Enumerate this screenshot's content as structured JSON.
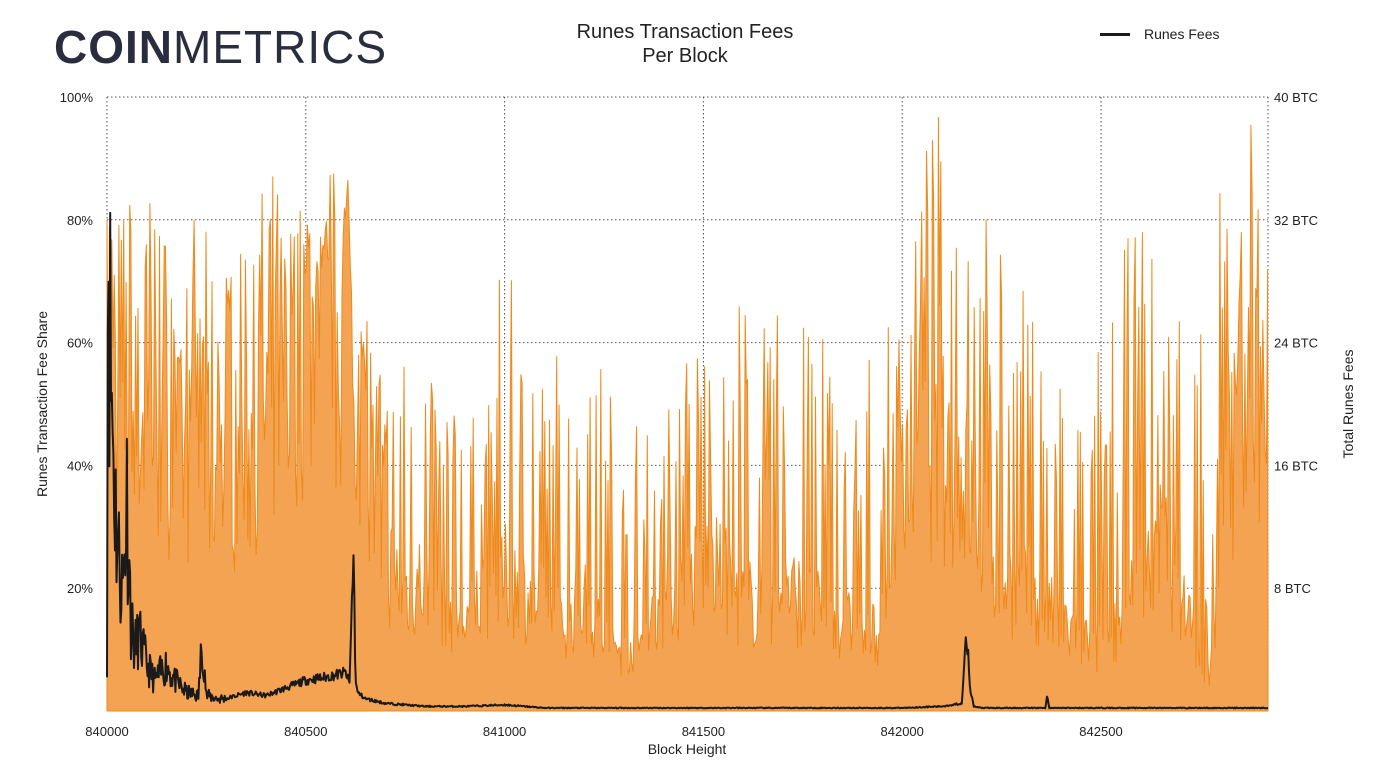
{
  "logo": {
    "part1": "COIN",
    "part2": "METRICS"
  },
  "chart_data": {
    "type": "area",
    "title_line1": "Runes Transaction Fees",
    "title_line2": "Per Block",
    "xlabel": "Block Height",
    "ylabel_left": "Runes Transaction Fee Share",
    "ylabel_right": "Total Runes Fees",
    "xlim": [
      840000,
      842920
    ],
    "x_ticks": [
      840000,
      840500,
      841000,
      841500,
      842000,
      842500
    ],
    "ylim_left": [
      0,
      100
    ],
    "y_ticks_left": [
      {
        "value": 20,
        "label": "20%"
      },
      {
        "value": 40,
        "label": "40%"
      },
      {
        "value": 60,
        "label": "60%"
      },
      {
        "value": 80,
        "label": "80%"
      },
      {
        "value": 100,
        "label": "100%"
      }
    ],
    "ylim_right": [
      0,
      40
    ],
    "y_ticks_right": [
      {
        "value": 8,
        "label": "8 BTC"
      },
      {
        "value": 16,
        "label": "16 BTC"
      },
      {
        "value": 24,
        "label": "24 BTC"
      },
      {
        "value": 32,
        "label": "32 BTC"
      },
      {
        "value": 40,
        "label": "40 BTC"
      }
    ],
    "grid": true,
    "legend_position": "top-right",
    "series": [
      {
        "name": "",
        "axis": "left",
        "type": "area",
        "color": "#f0932b",
        "x": [
          840000,
          840010,
          840030,
          840060,
          840100,
          840150,
          840200,
          840250,
          840300,
          840350,
          840400,
          840450,
          840500,
          840550,
          840600,
          840630,
          840660,
          840700,
          840750,
          840800,
          840850,
          840900,
          840950,
          841000,
          841050,
          841100,
          841150,
          841200,
          841250,
          841300,
          841350,
          841400,
          841450,
          841500,
          841550,
          841600,
          841650,
          841700,
          841750,
          841800,
          841850,
          841900,
          841950,
          842000,
          842050,
          842100,
          842150,
          842200,
          842250,
          842300,
          842350,
          842400,
          842450,
          842500,
          842550,
          842600,
          842650,
          842700,
          842750,
          842770,
          842800,
          842850,
          842900,
          842920
        ],
        "baseline": [
          60,
          55,
          52,
          50,
          48,
          45,
          42,
          40,
          40,
          42,
          50,
          55,
          62,
          65,
          62,
          55,
          35,
          25,
          20,
          22,
          18,
          15,
          20,
          22,
          20,
          17,
          15,
          18,
          12,
          10,
          12,
          18,
          20,
          24,
          22,
          18,
          18,
          20,
          18,
          16,
          15,
          12,
          14,
          35,
          45,
          42,
          40,
          30,
          22,
          20,
          18,
          14,
          12,
          10,
          15,
          22,
          28,
          20,
          10,
          2,
          30,
          50,
          52,
          50
        ],
        "peaks": [
          97,
          92,
          90,
          88,
          92,
          85,
          82,
          78,
          80,
          82,
          88,
          86,
          85,
          84,
          97,
          80,
          70,
          58,
          60,
          62,
          55,
          52,
          48,
          78,
          70,
          62,
          60,
          60,
          58,
          45,
          50,
          55,
          65,
          72,
          62,
          68,
          62,
          70,
          68,
          72,
          65,
          60,
          55,
          80,
          92,
          98,
          95,
          82,
          75,
          70,
          70,
          62,
          55,
          62,
          78,
          80,
          82,
          75,
          70,
          5,
          88,
          98,
          96,
          92
        ]
      },
      {
        "name": "Runes Fees",
        "axis": "right",
        "type": "line",
        "color": "#1a1a1a",
        "x": [
          840000,
          840003,
          840006,
          840010,
          840015,
          840020,
          840030,
          840040,
          840050,
          840060,
          840070,
          840080,
          840100,
          840120,
          840150,
          840170,
          840200,
          840230,
          840240,
          840250,
          840280,
          840300,
          840350,
          840400,
          840450,
          840500,
          840550,
          840600,
          840610,
          840620,
          840625,
          840630,
          840650,
          840700,
          840800,
          840900,
          841000,
          841100,
          841200,
          841300,
          841500,
          841800,
          842000,
          842100,
          842150,
          842160,
          842165,
          842170,
          842180,
          842200,
          842300,
          842360,
          842365,
          842370,
          842400,
          842500,
          842700,
          842920
        ],
        "values": [
          4,
          37,
          27,
          22,
          18,
          14,
          10,
          8,
          14,
          6,
          4,
          5,
          3,
          2,
          3,
          2,
          1.2,
          1.0,
          4.8,
          1.0,
          0.8,
          0.8,
          1.2,
          1.0,
          1.5,
          2.0,
          2.2,
          2.5,
          1.8,
          10.5,
          2.0,
          1.2,
          0.8,
          0.5,
          0.3,
          0.3,
          0.4,
          0.2,
          0.2,
          0.2,
          0.2,
          0.2,
          0.2,
          0.3,
          0.5,
          5.2,
          4.0,
          1.5,
          0.3,
          0.2,
          0.2,
          0.2,
          1.0,
          0.2,
          0.2,
          0.2,
          0.2,
          0.2
        ]
      }
    ]
  }
}
